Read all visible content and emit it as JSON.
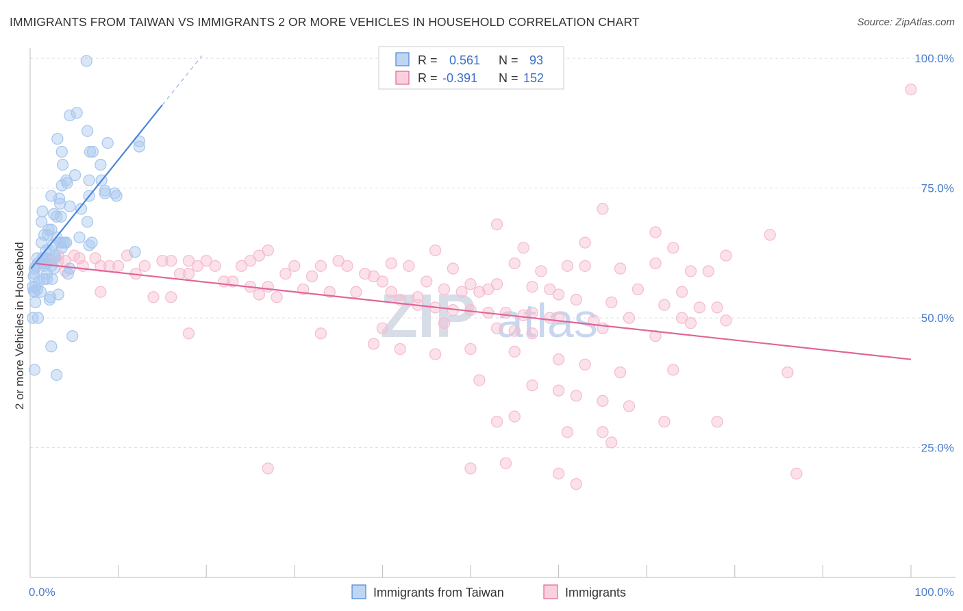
{
  "title": "IMMIGRANTS FROM TAIWAN VS IMMIGRANTS 2 OR MORE VEHICLES IN HOUSEHOLD CORRELATION CHART",
  "source": "Source: ZipAtlas.com",
  "watermark": {
    "zip": "ZIP",
    "atlas": "atlas"
  },
  "legend": {
    "r_label": "R =",
    "n_label": "N =",
    "rows": [
      {
        "r": "0.561",
        "n": "93",
        "color": "#8ab4e8"
      },
      {
        "r": "-0.391",
        "n": "152",
        "color": "#f4a9c0"
      }
    ]
  },
  "bottom_legend": [
    {
      "label": "Immigrants from Taiwan",
      "color": "#8ab4e8"
    },
    {
      "label": "Immigrants",
      "color": "#f4a9c0"
    }
  ],
  "chart_data": {
    "type": "scatter",
    "title": "IMMIGRANTS FROM TAIWAN VS IMMIGRANTS 2 OR MORE VEHICLES IN HOUSEHOLD CORRELATION CHART",
    "xlabel": "",
    "ylabel": "2 or more Vehicles in Household",
    "xlim": [
      0,
      100
    ],
    "ylim": [
      0,
      102
    ],
    "x_tick_labels": [
      "0.0%",
      "100.0%"
    ],
    "y_ticks": [
      25,
      50,
      75,
      100
    ],
    "y_tick_labels": [
      "25.0%",
      "50.0%",
      "75.0%",
      "100.0%"
    ],
    "grid": true,
    "legend_position": "top-center",
    "series": [
      {
        "name": "Immigrants from Taiwan",
        "color": "#4a86d8",
        "fill": "#a9c8ef",
        "trend": {
          "x0": 0.1,
          "y0": 59.5,
          "x1": 15,
          "y1": 91,
          "x1_dash": 19.5,
          "y1_dash": 100.5
        },
        "points": [
          [
            6.4,
            99.5
          ],
          [
            5.3,
            89.5
          ],
          [
            4.5,
            89
          ],
          [
            6.5,
            86
          ],
          [
            3.1,
            84.5
          ],
          [
            8.8,
            83.7
          ],
          [
            12.4,
            84
          ],
          [
            12.4,
            83
          ],
          [
            6.8,
            82
          ],
          [
            7.1,
            82
          ],
          [
            3.6,
            82
          ],
          [
            3.7,
            79.5
          ],
          [
            8.0,
            79.5
          ],
          [
            5.1,
            77.5
          ],
          [
            4.1,
            76.5
          ],
          [
            4.2,
            76
          ],
          [
            6.7,
            76.5
          ],
          [
            8.1,
            76.5
          ],
          [
            3.6,
            75.5
          ],
          [
            8.5,
            74.5
          ],
          [
            9.6,
            74
          ],
          [
            9.8,
            73.5
          ],
          [
            8.5,
            74
          ],
          [
            2.4,
            73.5
          ],
          [
            3.3,
            73
          ],
          [
            6.7,
            73.5
          ],
          [
            3.4,
            72
          ],
          [
            4.5,
            71.5
          ],
          [
            5.8,
            71
          ],
          [
            1.4,
            70.5
          ],
          [
            2.7,
            70
          ],
          [
            3.0,
            69.5
          ],
          [
            3.5,
            69.5
          ],
          [
            1.3,
            68.5
          ],
          [
            6.5,
            68.5
          ],
          [
            2.1,
            67
          ],
          [
            2.4,
            67
          ],
          [
            2.0,
            66
          ],
          [
            1.6,
            66
          ],
          [
            3.0,
            65.5
          ],
          [
            5.6,
            65.5
          ],
          [
            3.4,
            64.5
          ],
          [
            3.7,
            64.5
          ],
          [
            1.3,
            64.5
          ],
          [
            7.0,
            64.5
          ],
          [
            3.9,
            64.5
          ],
          [
            2.6,
            64
          ],
          [
            6.7,
            64
          ],
          [
            4.1,
            64.5
          ],
          [
            3.6,
            63.5
          ],
          [
            1.8,
            63
          ],
          [
            2.2,
            63
          ],
          [
            11.9,
            62.7
          ],
          [
            2.8,
            62
          ],
          [
            1.6,
            61.5
          ],
          [
            1.4,
            61.5
          ],
          [
            0.8,
            61.5
          ],
          [
            2.8,
            61.5
          ],
          [
            1.5,
            61
          ],
          [
            1.8,
            60.5
          ],
          [
            0.9,
            60.5
          ],
          [
            1.4,
            60.5
          ],
          [
            1.6,
            60
          ],
          [
            2.4,
            60
          ],
          [
            0.7,
            60
          ],
          [
            0.5,
            59.5
          ],
          [
            2.7,
            59.5
          ],
          [
            4.5,
            59.5
          ],
          [
            4.3,
            58.5
          ],
          [
            0.5,
            58.5
          ],
          [
            1.9,
            58.5
          ],
          [
            0.4,
            58
          ],
          [
            1.6,
            57.5
          ],
          [
            2.5,
            57.5
          ],
          [
            1.0,
            57
          ],
          [
            1.9,
            57.5
          ],
          [
            0.3,
            56
          ],
          [
            0.6,
            56
          ],
          [
            0.8,
            55.5
          ],
          [
            1.2,
            55
          ],
          [
            0.5,
            55
          ],
          [
            0.4,
            55.2
          ],
          [
            3.2,
            54.5
          ],
          [
            2.3,
            54
          ],
          [
            2.2,
            53.5
          ],
          [
            0.6,
            53
          ],
          [
            0.3,
            50
          ],
          [
            0.9,
            50
          ],
          [
            2.4,
            44.5
          ],
          [
            4.8,
            46.5
          ],
          [
            0.5,
            40
          ],
          [
            3.0,
            39
          ]
        ]
      },
      {
        "name": "Immigrants",
        "color": "#e06598",
        "fill": "#f6bdd0",
        "trend": {
          "x0": 0.5,
          "y0": 60.5,
          "x1": 100,
          "y1": 42
        },
        "points": [
          [
            100,
            94
          ],
          [
            65,
            71
          ],
          [
            53,
            68
          ],
          [
            71,
            66.5
          ],
          [
            84,
            66
          ],
          [
            63,
            64.5
          ],
          [
            56,
            63.5
          ],
          [
            73,
            63.5
          ],
          [
            46,
            63
          ],
          [
            27,
            63
          ],
          [
            26,
            62
          ],
          [
            5,
            62
          ],
          [
            11,
            62
          ],
          [
            3.2,
            62
          ],
          [
            5.6,
            61.5
          ],
          [
            1.9,
            61.5
          ],
          [
            1.6,
            61
          ],
          [
            3.2,
            61
          ],
          [
            4.0,
            61
          ],
          [
            2.4,
            61
          ],
          [
            7.4,
            61.5
          ],
          [
            15,
            61
          ],
          [
            16,
            61
          ],
          [
            18,
            61
          ],
          [
            20,
            61
          ],
          [
            25,
            61
          ],
          [
            35,
            61
          ],
          [
            41,
            60.5
          ],
          [
            55,
            60.5
          ],
          [
            61,
            60
          ],
          [
            71,
            60.5
          ],
          [
            63,
            60
          ],
          [
            79,
            62
          ],
          [
            9,
            60
          ],
          [
            6,
            60
          ],
          [
            8,
            60
          ],
          [
            10,
            60
          ],
          [
            13,
            60
          ],
          [
            19,
            60
          ],
          [
            21,
            60
          ],
          [
            24,
            60
          ],
          [
            30,
            60
          ],
          [
            33,
            60
          ],
          [
            36,
            60
          ],
          [
            43,
            60
          ],
          [
            48,
            59.5
          ],
          [
            58,
            59
          ],
          [
            67,
            59.5
          ],
          [
            75,
            59
          ],
          [
            77,
            59
          ],
          [
            4,
            59
          ],
          [
            12,
            58.5
          ],
          [
            17,
            58.5
          ],
          [
            18,
            58.5
          ],
          [
            29,
            58.5
          ],
          [
            32,
            58
          ],
          [
            38,
            58.5
          ],
          [
            39,
            58
          ],
          [
            40,
            57
          ],
          [
            45,
            57
          ],
          [
            50,
            56.5
          ],
          [
            53,
            56.5
          ],
          [
            57,
            56
          ],
          [
            59,
            55.5
          ],
          [
            69,
            55.5
          ],
          [
            74,
            55
          ],
          [
            22,
            57
          ],
          [
            23,
            57
          ],
          [
            25,
            56
          ],
          [
            27,
            56
          ],
          [
            31,
            55.5
          ],
          [
            34,
            55
          ],
          [
            37,
            55
          ],
          [
            41,
            55
          ],
          [
            44,
            54
          ],
          [
            47,
            55.5
          ],
          [
            49,
            55
          ],
          [
            51,
            55
          ],
          [
            52,
            55.5
          ],
          [
            60,
            54.5
          ],
          [
            62,
            53.5
          ],
          [
            66,
            53
          ],
          [
            72,
            52.5
          ],
          [
            76,
            52
          ],
          [
            78,
            52
          ],
          [
            8,
            55
          ],
          [
            14,
            54
          ],
          [
            16,
            54
          ],
          [
            26,
            54.5
          ],
          [
            28,
            54
          ],
          [
            42,
            53.5
          ],
          [
            44,
            52.5
          ],
          [
            46,
            52
          ],
          [
            48,
            51.5
          ],
          [
            50,
            51.5
          ],
          [
            52,
            51
          ],
          [
            54,
            51
          ],
          [
            56,
            50.5
          ],
          [
            57,
            51
          ],
          [
            59,
            50
          ],
          [
            60,
            50
          ],
          [
            64,
            49.5
          ],
          [
            68,
            50
          ],
          [
            74,
            50
          ],
          [
            75,
            49
          ],
          [
            79,
            49.5
          ],
          [
            40,
            48
          ],
          [
            47,
            49
          ],
          [
            53,
            48
          ],
          [
            55,
            47.5
          ],
          [
            57,
            47
          ],
          [
            65,
            48
          ],
          [
            71,
            46.5
          ],
          [
            18,
            47
          ],
          [
            33,
            47
          ],
          [
            39,
            45
          ],
          [
            42,
            44
          ],
          [
            46,
            43
          ],
          [
            50,
            44
          ],
          [
            55,
            43.5
          ],
          [
            60,
            42
          ],
          [
            63,
            41
          ],
          [
            67,
            39.5
          ],
          [
            73,
            40
          ],
          [
            86,
            39.5
          ],
          [
            51,
            38
          ],
          [
            57,
            37
          ],
          [
            60,
            36
          ],
          [
            62,
            35
          ],
          [
            65,
            34
          ],
          [
            68,
            33
          ],
          [
            55,
            31
          ],
          [
            53,
            30
          ],
          [
            61,
            28
          ],
          [
            65,
            28
          ],
          [
            72,
            30
          ],
          [
            78,
            30
          ],
          [
            66,
            26
          ],
          [
            54,
            22
          ],
          [
            87,
            20
          ],
          [
            27,
            21
          ],
          [
            50,
            21
          ],
          [
            60,
            20
          ],
          [
            62,
            18
          ]
        ]
      }
    ]
  }
}
